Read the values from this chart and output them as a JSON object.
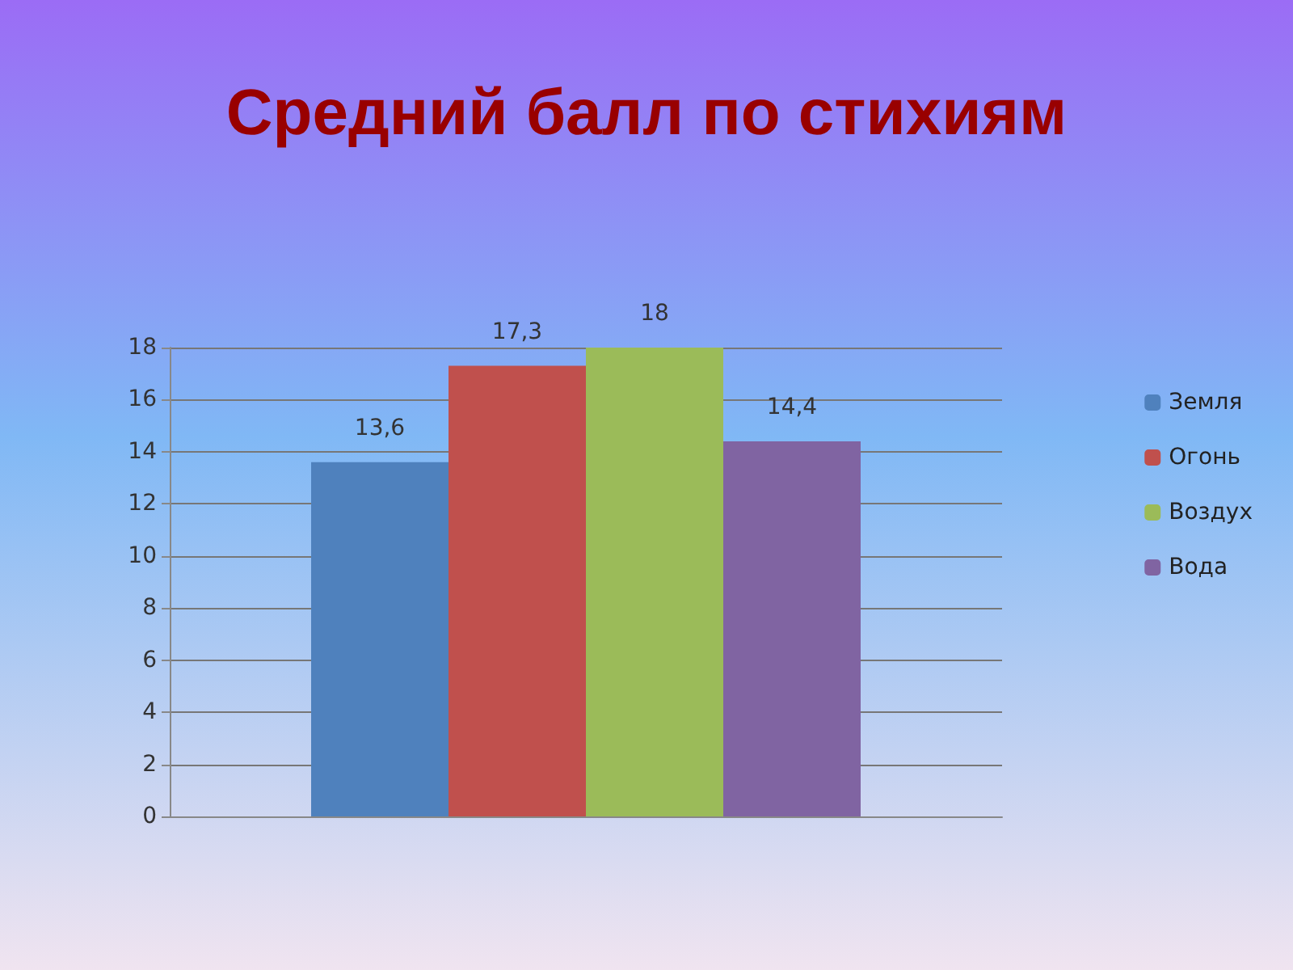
{
  "chart_data": {
    "type": "bar",
    "title": "Средний балл по стихиям",
    "categories": [
      null
    ],
    "series": [
      {
        "name": "Земля",
        "color": "#4f81bd",
        "values": [
          13.6
        ],
        "value_labels": [
          "13,6"
        ]
      },
      {
        "name": "Огонь",
        "color": "#c0504d",
        "values": [
          17.3
        ],
        "value_labels": [
          "17,3"
        ]
      },
      {
        "name": "Воздух",
        "color": "#9bbb59",
        "values": [
          18
        ],
        "value_labels": [
          "18"
        ]
      },
      {
        "name": "Вода",
        "color": "#8064a2",
        "values": [
          14.4
        ],
        "value_labels": [
          "14,4"
        ]
      }
    ],
    "ylim": [
      0,
      18
    ],
    "yticks": [
      0,
      2,
      4,
      6,
      8,
      10,
      12,
      14,
      16,
      18
    ],
    "grid": "y",
    "legend": "right"
  }
}
